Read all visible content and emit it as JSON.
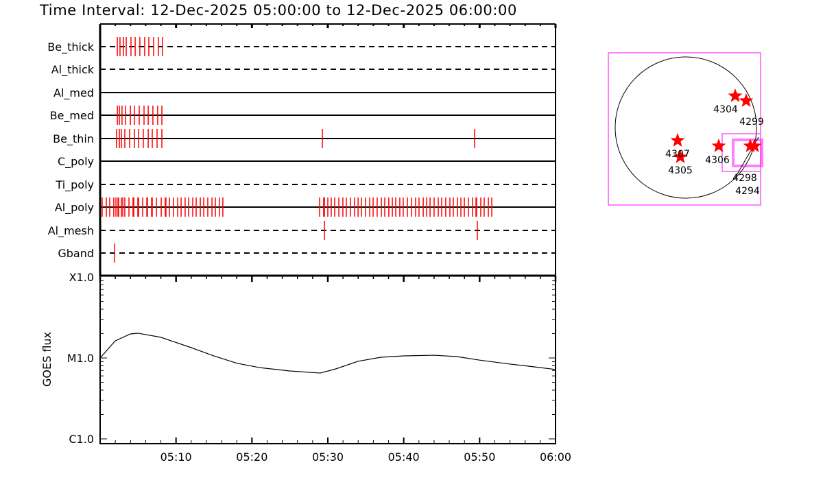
{
  "title": "Time Interval: 12-Dec-2025 05:00:00 to 12-Dec-2025 06:00:00",
  "colors": {
    "events": "#ff0000",
    "axes": "#000000",
    "map_boxes": "#ff00ff",
    "stars": "#ff0000"
  },
  "chart_data": [
    {
      "type": "scatter",
      "subtype": "event-timeline",
      "x_range": [
        "05:00:00",
        "06:00:00"
      ],
      "rows": [
        {
          "name": "Be_thick",
          "line": "dashed",
          "times": [
            "05:02:16",
            "05:02:37",
            "05:03:04",
            "05:03:26",
            "05:04:04",
            "05:04:37",
            "05:05:14",
            "05:05:52",
            "05:06:25",
            "05:07:03",
            "05:07:41",
            "05:08:13"
          ]
        },
        {
          "name": "Al_thick",
          "line": "dashed",
          "times": []
        },
        {
          "name": "Al_med",
          "line": "solid",
          "times": []
        },
        {
          "name": "Be_med",
          "line": "solid",
          "times": [
            "05:02:16",
            "05:02:32",
            "05:02:53",
            "05:03:21",
            "05:03:59",
            "05:04:31",
            "05:05:09",
            "05:05:47",
            "05:06:20",
            "05:06:57",
            "05:07:35",
            "05:08:08"
          ]
        },
        {
          "name": "Be_thin",
          "line": "solid",
          "times": [
            "05:02:10",
            "05:02:32",
            "05:02:48",
            "05:03:15",
            "05:03:53",
            "05:04:31",
            "05:05:04",
            "05:05:41",
            "05:06:20",
            "05:06:52",
            "05:07:30",
            "05:08:08",
            "05:29:17",
            "05:49:20"
          ]
        },
        {
          "name": "C_poly",
          "line": "solid",
          "times": []
        },
        {
          "name": "Ti_poly",
          "line": "dashed",
          "times": []
        },
        {
          "name": "Al_poly",
          "line": "solid",
          "times": [
            "05:00:16",
            "05:00:49",
            "05:01:16",
            "05:01:48",
            "05:02:05",
            "05:02:21",
            "05:02:26",
            "05:02:48",
            "05:02:59",
            "05:03:15",
            "05:03:48",
            "05:04:20",
            "05:04:26",
            "05:04:58",
            "05:05:04",
            "05:05:36",
            "05:06:09",
            "05:06:14",
            "05:06:47",
            "05:06:52",
            "05:07:25",
            "05:08:03",
            "05:08:35",
            "05:08:40",
            "05:09:08",
            "05:09:40",
            "05:10:13",
            "05:10:40",
            "05:11:12",
            "05:11:39",
            "05:12:12",
            "05:12:39",
            "05:13:12",
            "05:13:39",
            "05:14:11",
            "05:14:44",
            "05:15:11",
            "05:15:43",
            "05:16:10",
            "05:28:55",
            "05:29:27",
            "05:29:33",
            "05:30:00",
            "05:30:27",
            "05:30:54",
            "05:31:27",
            "05:31:59",
            "05:32:26",
            "05:32:59",
            "05:33:31",
            "05:33:59",
            "05:34:26",
            "05:34:58",
            "05:35:31",
            "05:35:58",
            "05:36:30",
            "05:37:03",
            "05:37:30",
            "05:38:02",
            "05:38:30",
            "05:38:57",
            "05:39:29",
            "05:39:56",
            "05:40:29",
            "05:41:01",
            "05:41:34",
            "05:42:01",
            "05:42:34",
            "05:43:01",
            "05:43:28",
            "05:44:00",
            "05:44:33",
            "05:45:00",
            "05:45:32",
            "05:46:05",
            "05:46:32",
            "05:47:05",
            "05:47:32",
            "05:47:59",
            "05:48:31",
            "05:49:04",
            "05:49:31",
            "05:49:36",
            "05:50:09",
            "05:50:36",
            "05:51:09",
            "05:51:36"
          ]
        },
        {
          "name": "Al_mesh",
          "line": "dashed",
          "times": [
            "05:29:33",
            "05:49:42"
          ]
        },
        {
          "name": "Gband",
          "line": "dashed",
          "times": [
            "05:01:54"
          ]
        }
      ]
    },
    {
      "type": "line",
      "ylabel": "GOES flux",
      "yscale": "log",
      "ylim": [
        1e-06,
        0.0001
      ],
      "ytick_labels": [
        {
          "label": "C1.0",
          "value": 1e-06
        },
        {
          "label": "M1.0",
          "value": 1e-05
        },
        {
          "label": "X1.0",
          "value": 0.0001
        }
      ],
      "xlim": [
        "05:00",
        "06:00"
      ],
      "xtick_labels": [
        "05:10",
        "05:20",
        "05:30",
        "05:40",
        "05:50",
        "06:00"
      ],
      "x": [
        "05:00",
        "05:02",
        "05:04",
        "05:05",
        "05:08",
        "05:12",
        "05:15",
        "05:18",
        "05:21",
        "05:25",
        "05:29",
        "05:31",
        "05:34",
        "05:37",
        "05:40",
        "05:44",
        "05:47",
        "05:50",
        "05:54",
        "05:57",
        "06:00"
      ],
      "y": [
        1e-05,
        1.63e-05,
        1.98e-05,
        2.02e-05,
        1.8e-05,
        1.34e-05,
        1.06e-05,
        8.6e-06,
        7.6e-06,
        6.9e-06,
        6.5e-06,
        7.3e-06,
        9.1e-06,
        1.02e-05,
        1.06e-05,
        1.08e-05,
        1.04e-05,
        9.4e-06,
        8.4e-06,
        7.8e-06,
        7.2e-06
      ]
    }
  ],
  "map": {
    "regions": [
      {
        "label": "4304"
      },
      {
        "label": "4299"
      },
      {
        "label": "4307"
      },
      {
        "label": "4305"
      },
      {
        "label": "4306"
      },
      {
        "label": "4298"
      },
      {
        "label": "4294"
      }
    ]
  }
}
